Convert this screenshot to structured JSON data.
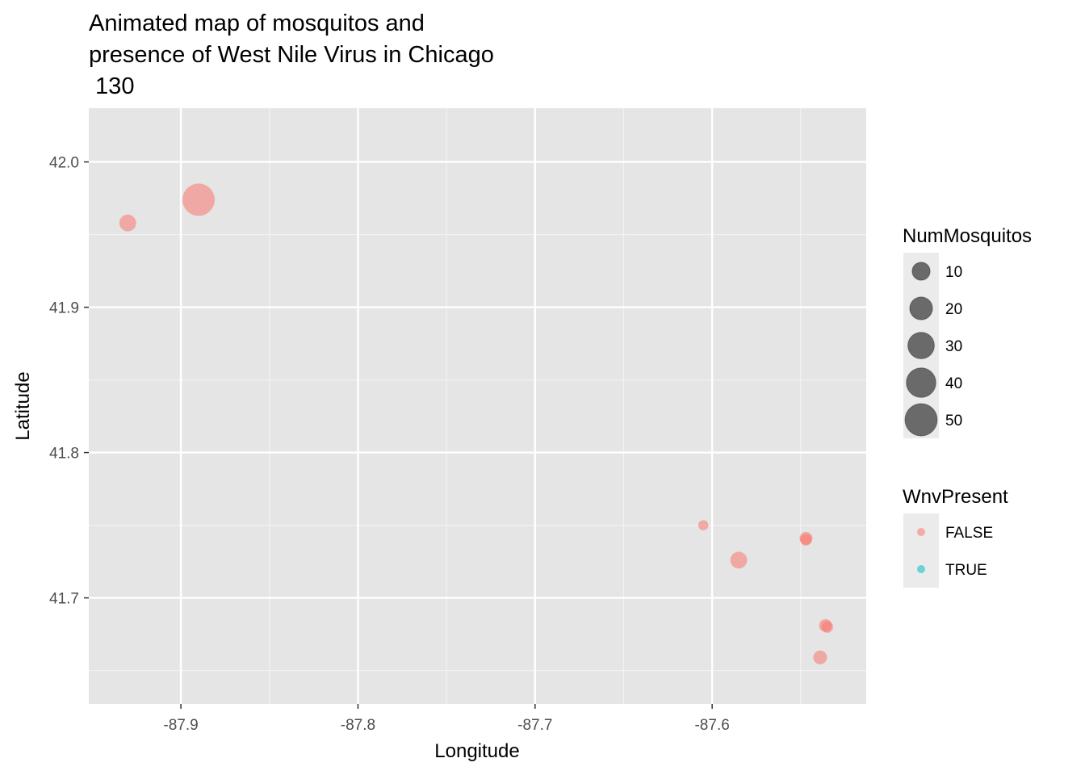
{
  "chart_data": {
    "type": "scatter",
    "title_lines": [
      "Animated map of mosquitos and",
      "presence of West Nile Virus in Chicago",
      " 130"
    ],
    "xlabel": "Longitude",
    "ylabel": "Latitude",
    "xlim": [
      -87.952,
      -87.513
    ],
    "ylim": [
      41.627,
      42.037
    ],
    "x_ticks": [
      -87.9,
      -87.8,
      -87.7,
      -87.6
    ],
    "x_tick_labels": [
      "-87.9",
      "-87.8",
      "-87.7",
      "-87.6"
    ],
    "y_ticks": [
      41.7,
      41.8,
      41.9,
      42.0
    ],
    "y_tick_labels": [
      "41.7",
      "41.8",
      "41.9",
      "42.0"
    ],
    "grid": true,
    "panel_color": "#e5e5e5",
    "series": [
      {
        "name": "FALSE",
        "color": "#f8766d",
        "points": [
          {
            "x": -87.89,
            "y": 41.974,
            "size": 50
          },
          {
            "x": -87.93,
            "y": 41.958,
            "size": 8
          },
          {
            "x": -87.605,
            "y": 41.75,
            "size": 1
          },
          {
            "x": -87.585,
            "y": 41.726,
            "size": 8
          },
          {
            "x": -87.547,
            "y": 41.741,
            "size": 3
          },
          {
            "x": -87.547,
            "y": 41.74,
            "size": 2
          },
          {
            "x": -87.536,
            "y": 41.681,
            "size": 3
          },
          {
            "x": -87.535,
            "y": 41.68,
            "size": 2
          },
          {
            "x": -87.539,
            "y": 41.659,
            "size": 4
          }
        ]
      },
      {
        "name": "TRUE",
        "color": "#00bfc4",
        "points": []
      }
    ],
    "legend_placement": "right",
    "legend_size": {
      "title": "NumMosquitos",
      "values": [
        10,
        20,
        30,
        40,
        50
      ],
      "labels": [
        "10",
        "20",
        "30",
        "40",
        "50"
      ],
      "color": "#000000"
    },
    "legend_color": {
      "title": "WnvPresent",
      "labels": [
        "FALSE",
        "TRUE"
      ],
      "colors": [
        "#f8766d",
        "#00bfc4"
      ]
    }
  }
}
